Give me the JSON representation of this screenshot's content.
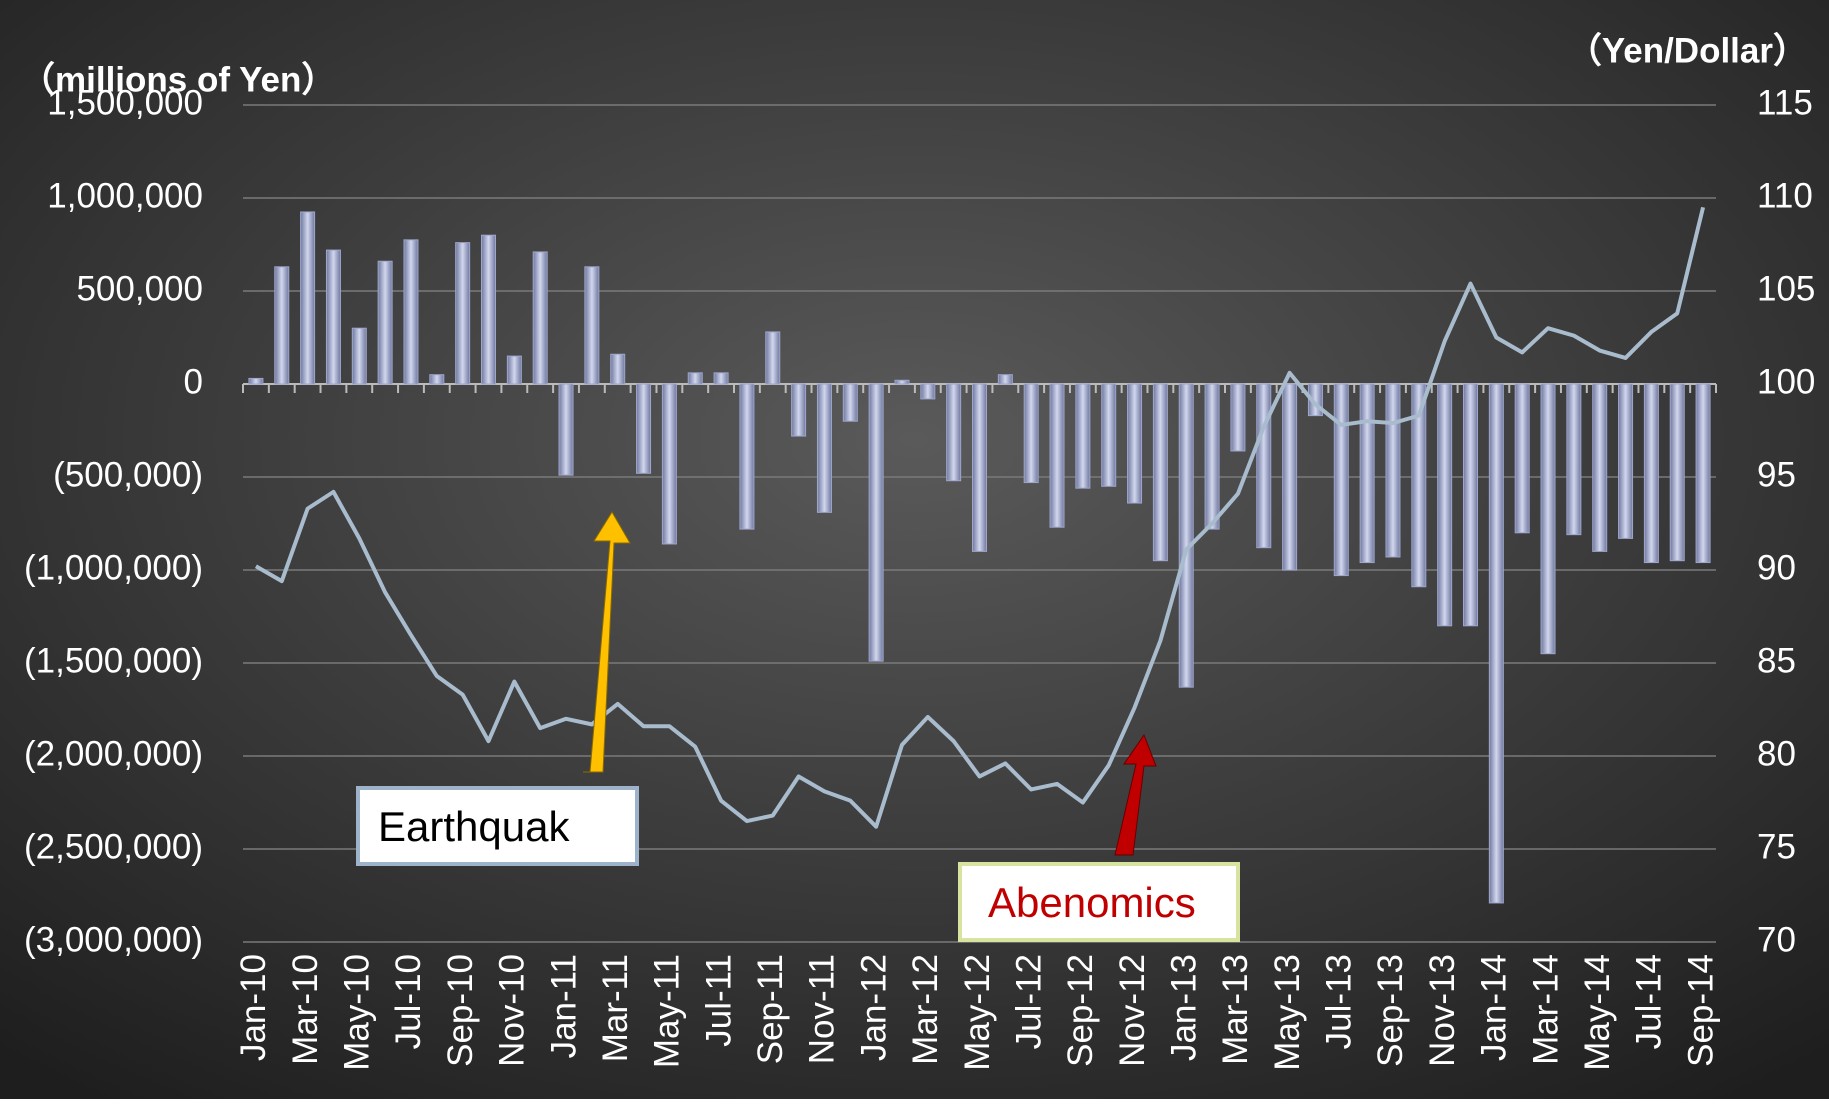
{
  "chart_data": {
    "type": "bar-line",
    "y_label": "（millions of Yen）",
    "y2_label": "（Yen/Dollar）",
    "categories": [
      "Jan-10",
      null,
      "Mar-10",
      null,
      "May-10",
      null,
      "Jul-10",
      null,
      "Sep-10",
      null,
      "Nov-10",
      null,
      "Jan-11",
      null,
      "Mar-11",
      null,
      "May-11",
      null,
      "Jul-11",
      null,
      "Sep-11",
      null,
      "Nov-11",
      null,
      "Jan-12",
      null,
      "Mar-12",
      null,
      "May-12",
      null,
      "Jul-12",
      null,
      "Sep-12",
      null,
      "Nov-12",
      null,
      "Jan-13",
      null,
      "Mar-13",
      null,
      "May-13",
      null,
      "Jul-13",
      null,
      "Sep-13",
      null,
      "Nov-13",
      null,
      "Jan-14",
      null,
      "Mar-14",
      null,
      "May-14",
      null,
      "Jul-14",
      null,
      "Sep-14"
    ],
    "series": [
      {
        "type": "bar",
        "color": "#9ea6cc",
        "values": [
          30000,
          630000,
          925000,
          720000,
          300000,
          660000,
          775000,
          50000,
          760000,
          800000,
          150000,
          710000,
          -490000,
          630000,
          160000,
          -480000,
          -860000,
          60000,
          60000,
          -780000,
          280000,
          -280000,
          -690000,
          -200000,
          -1490000,
          20000,
          -80000,
          -520000,
          -900000,
          50000,
          -530000,
          -770000,
          -560000,
          -550000,
          -640000,
          -950000,
          -1630000,
          -780000,
          -360000,
          -880000,
          -1000000,
          -170000,
          -1030000,
          -960000,
          -930000,
          -1090000,
          -1300000,
          -1300000,
          -2790000,
          -800000,
          -1450000,
          -810000,
          -900000,
          -830000,
          -960000,
          -950000,
          -960000
        ]
      },
      {
        "type": "line",
        "axis": "y2",
        "color": "#a9bccd",
        "values": [
          90.2,
          89.4,
          93.3,
          94.2,
          91.7,
          88.8,
          86.5,
          84.3,
          83.3,
          80.8,
          84.0,
          81.5,
          82.0,
          81.7,
          82.8,
          81.6,
          81.6,
          80.5,
          77.6,
          76.5,
          76.8,
          78.9,
          78.1,
          77.6,
          76.2,
          80.6,
          82.1,
          80.8,
          78.9,
          79.6,
          78.2,
          78.5,
          77.5,
          79.5,
          82.6,
          86.2,
          91.1,
          92.5,
          94.1,
          97.7,
          100.6,
          98.9,
          97.8,
          98.0,
          97.9,
          98.3,
          102.3,
          105.4,
          102.5,
          101.7,
          103.0,
          102.6,
          101.8,
          101.4,
          102.8,
          103.8,
          109.5
        ]
      }
    ],
    "ylim": [
      -3000000,
      1500000
    ],
    "yticks": [
      {
        "value": -3000000,
        "label": "(3,000,000)"
      },
      {
        "value": -2500000,
        "label": "(2,500,000)"
      },
      {
        "value": -2000000,
        "label": "(2,000,000)"
      },
      {
        "value": -1500000,
        "label": "(1,500,000)"
      },
      {
        "value": -1000000,
        "label": "(1,000,000)"
      },
      {
        "value": -500000,
        "label": "(500,000)"
      },
      0,
      {
        "value": 500000,
        "label": "500,000"
      },
      {
        "value": 1000000,
        "label": "1,000,000"
      },
      {
        "value": 1500000,
        "label": "1,500,000"
      }
    ],
    "y2lim": [
      70,
      115
    ],
    "y2ticks": [
      70,
      75,
      80,
      85,
      90,
      95,
      100,
      105,
      110,
      115
    ],
    "grid": true,
    "annotations": [
      "Earthquak",
      "Abenomics"
    ]
  }
}
